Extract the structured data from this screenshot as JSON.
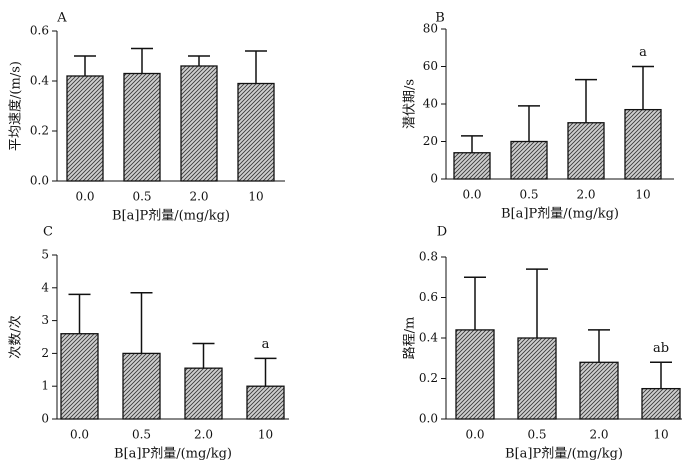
{
  "colors": {
    "axis": "#111111",
    "bar_fill": "#cfcfcf",
    "bar_hatch": "#3a3a3a"
  },
  "chart_data": [
    {
      "type": "bar",
      "panel_label": "A",
      "categories": [
        "0.0",
        "0.5",
        "2.0",
        "10"
      ],
      "values": [
        0.42,
        0.43,
        0.46,
        0.39
      ],
      "errors": [
        0.08,
        0.1,
        0.04,
        0.13
      ],
      "annotations": [
        "",
        "",
        "",
        ""
      ],
      "ylabel": "平均速度/(m/s)",
      "xlabel": "B[a]P剂量/(mg/kg)",
      "yticks": [
        "0.0",
        "0.2",
        "0.4",
        "0.6"
      ],
      "ylim": [
        0,
        0.6
      ]
    },
    {
      "type": "bar",
      "panel_label": "B",
      "categories": [
        "0.0",
        "0.5",
        "2.0",
        "10"
      ],
      "values": [
        14,
        20,
        30,
        37
      ],
      "errors": [
        9,
        19,
        23,
        23
      ],
      "annotations": [
        "",
        "",
        "",
        "a"
      ],
      "ylabel": "潜伏期/s",
      "xlabel": "B[a]P剂量/(mg/kg)",
      "yticks": [
        "0",
        "20",
        "40",
        "60",
        "80"
      ],
      "ylim": [
        0,
        80
      ]
    },
    {
      "type": "bar",
      "panel_label": "C",
      "categories": [
        "0.0",
        "0.5",
        "2.0",
        "10"
      ],
      "values": [
        2.6,
        2.0,
        1.55,
        1.0
      ],
      "errors": [
        1.2,
        1.85,
        0.75,
        0.85
      ],
      "annotations": [
        "",
        "",
        "",
        "a"
      ],
      "ylabel": "次数/次",
      "xlabel": "B[a]P剂量/(mg/kg)",
      "yticks": [
        "0",
        "1",
        "2",
        "3",
        "4",
        "5"
      ],
      "ylim": [
        0,
        5
      ]
    },
    {
      "type": "bar",
      "panel_label": "D",
      "categories": [
        "0.0",
        "0.5",
        "2.0",
        "10"
      ],
      "values": [
        0.44,
        0.4,
        0.28,
        0.15
      ],
      "errors": [
        0.26,
        0.34,
        0.16,
        0.13
      ],
      "annotations": [
        "",
        "",
        "",
        "ab"
      ],
      "ylabel": "路程/m",
      "xlabel": "B[a]P剂量/(mg/kg)",
      "yticks": [
        "0.0",
        "0.2",
        "0.4",
        "0.6",
        "0.8"
      ],
      "ylim": [
        0,
        0.8
      ]
    }
  ]
}
